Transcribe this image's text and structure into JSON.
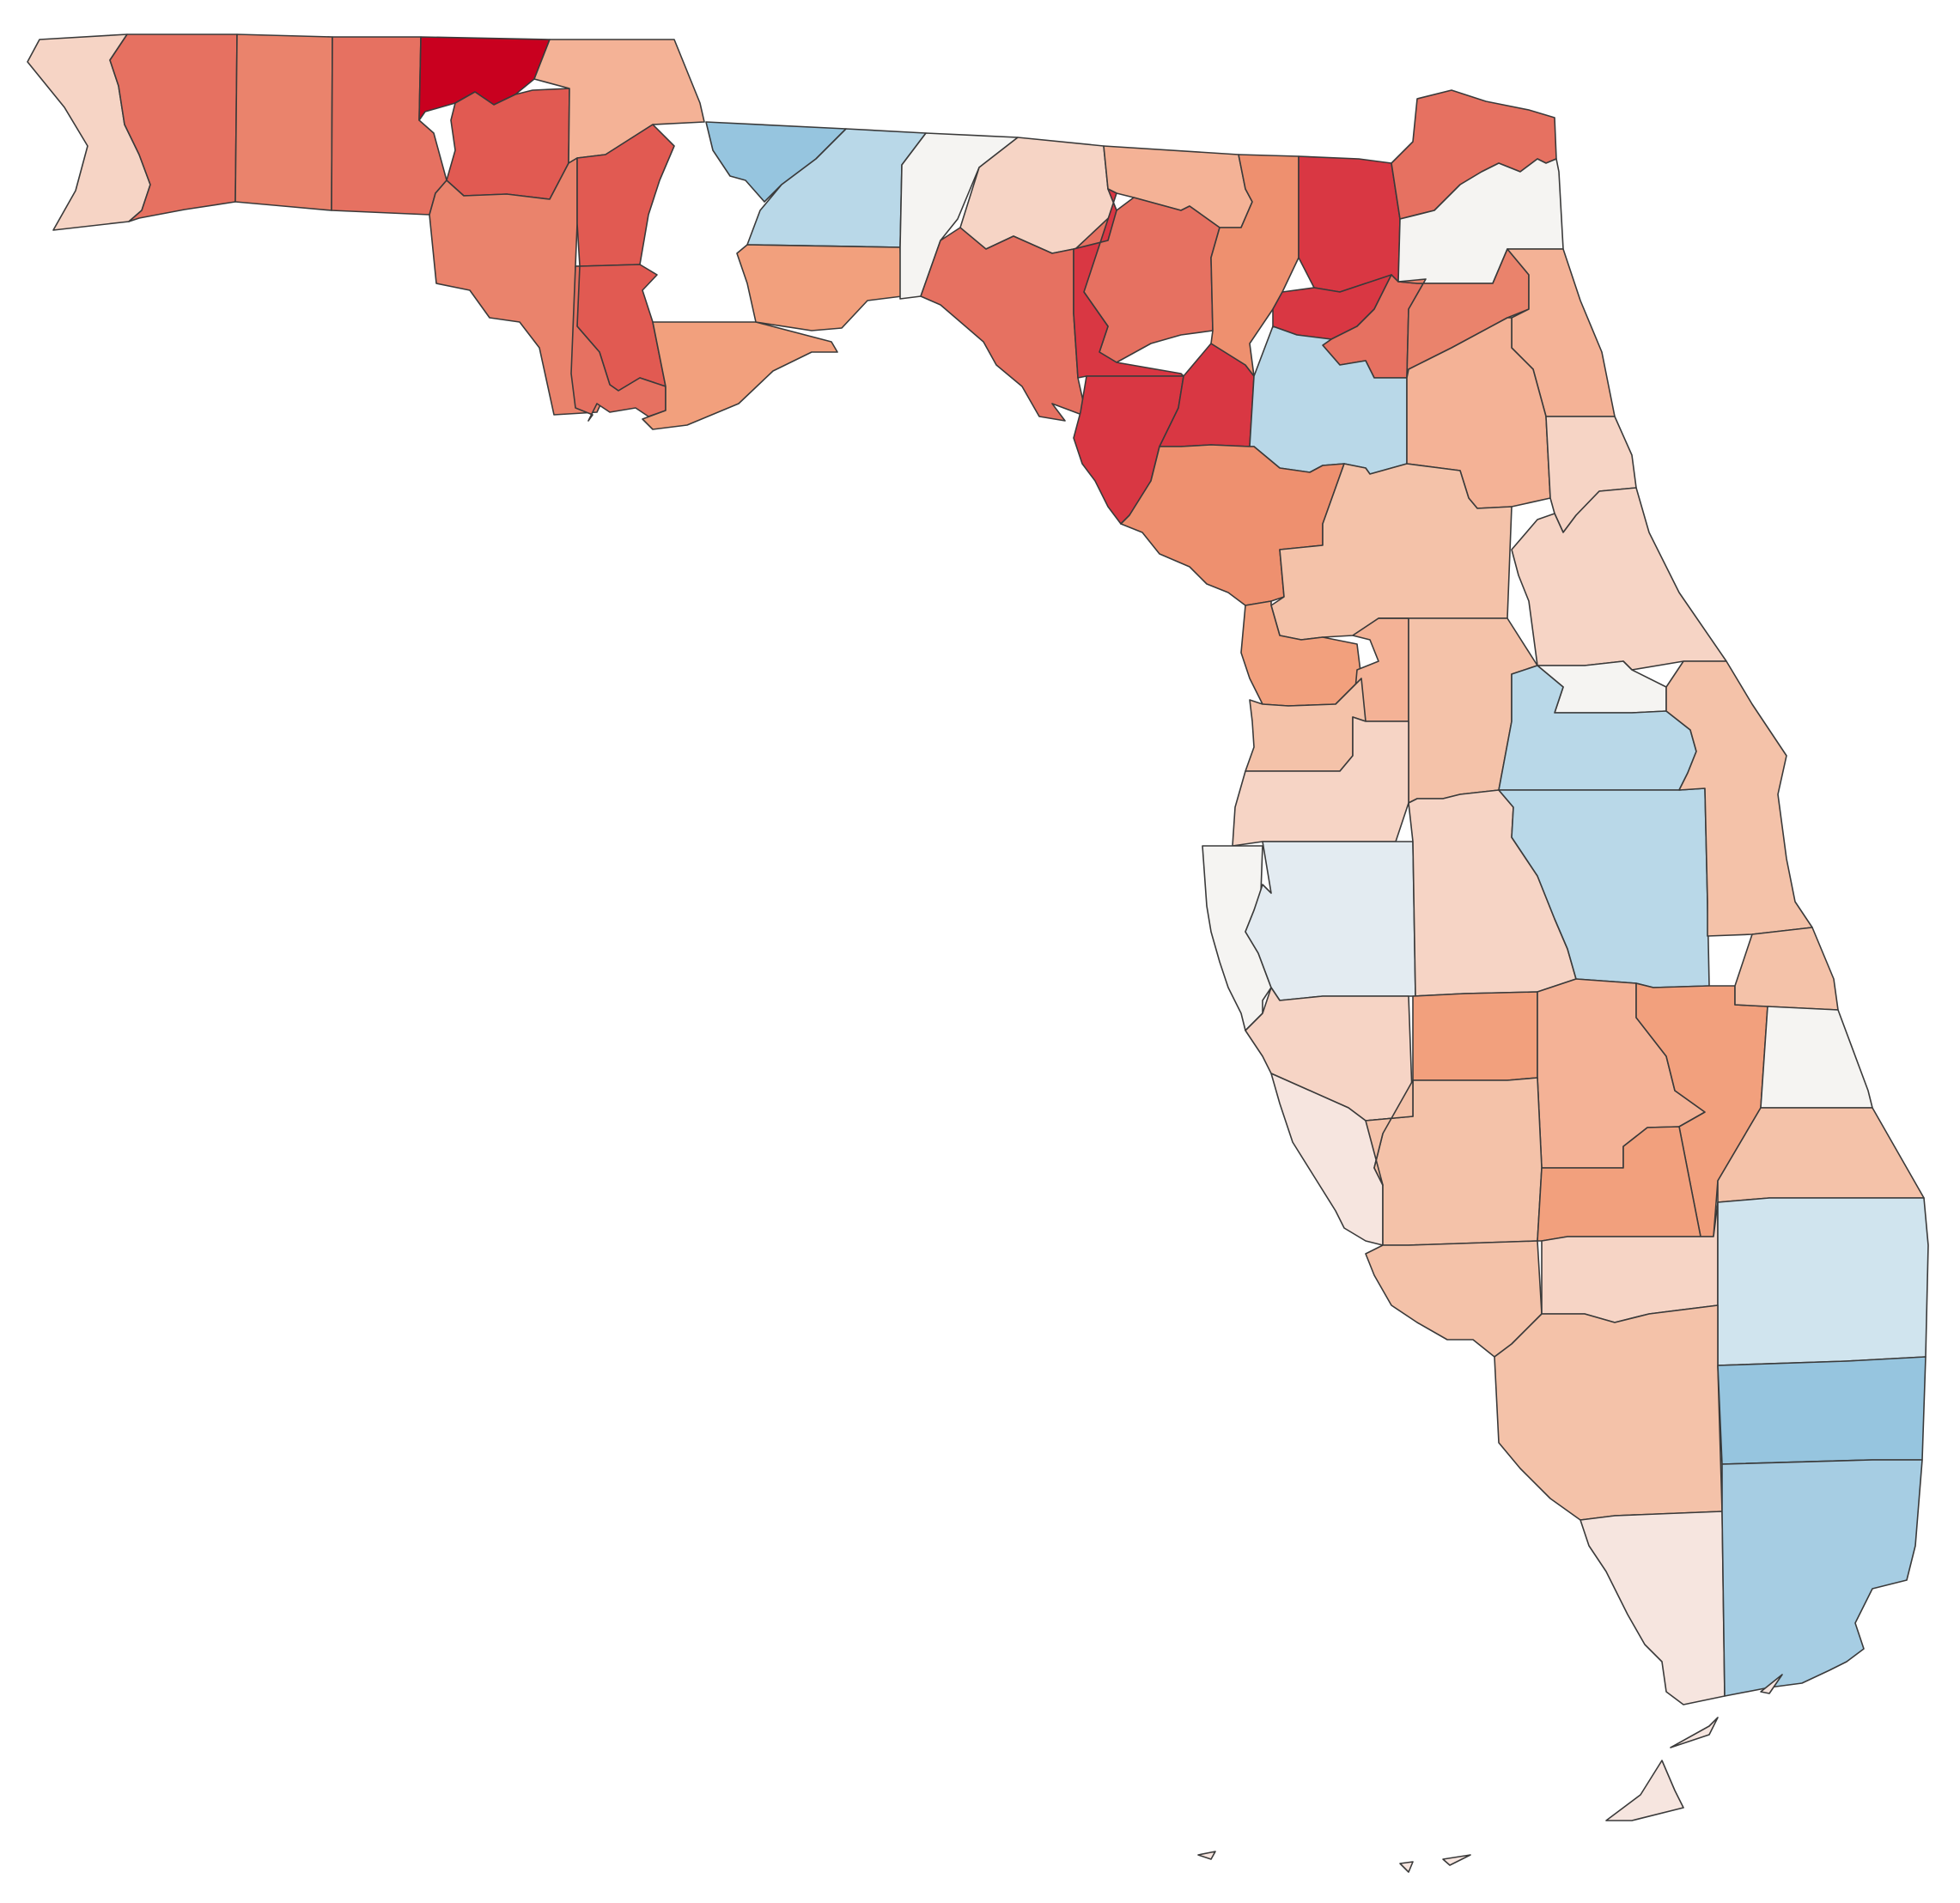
{
  "map": {
    "region": "Florida",
    "unit": "county",
    "legend": null,
    "title": "",
    "color_scale": {
      "type": "diverging",
      "negative_end": "#c9001f",
      "midpoint": "#f5f4f2",
      "positive_end": "#8fc1dc"
    },
    "palette": {
      "r5": "#c9001f",
      "r4": "#d93743",
      "r3": "#e15a52",
      "r2": "#e67161",
      "r1": "#ea836c",
      "o3": "#ee906f",
      "o2": "#f2a07d",
      "o1": "#f4b296",
      "p2": "#f4c2a9",
      "p1": "#f6d4c5",
      "p0": "#f6e5df",
      "n": "#f5f4f2",
      "b1": "#e3ebf1",
      "b2": "#d0e4ee",
      "b3": "#b9d8e8",
      "b4": "#a6cde3",
      "b5": "#96c5df"
    },
    "counties": [
      {
        "id": "escambia",
        "color_key": "p1"
      },
      {
        "id": "santa-rosa",
        "color_key": "r2"
      },
      {
        "id": "okaloosa",
        "color_key": "r1"
      },
      {
        "id": "walton",
        "color_key": "r2"
      },
      {
        "id": "holmes",
        "color_key": "r5"
      },
      {
        "id": "washington",
        "color_key": "r3"
      },
      {
        "id": "jackson",
        "color_key": "o1"
      },
      {
        "id": "bay",
        "color_key": "r1"
      },
      {
        "id": "calhoun",
        "color_key": "r3"
      },
      {
        "id": "liberty",
        "color_key": "r3"
      },
      {
        "id": "gulf",
        "color_key": "r2"
      },
      {
        "id": "franklin",
        "color_key": "o2"
      },
      {
        "id": "gadsden",
        "color_key": "b5"
      },
      {
        "id": "leon",
        "color_key": "b3"
      },
      {
        "id": "wakulla",
        "color_key": "o2"
      },
      {
        "id": "jefferson",
        "color_key": "n"
      },
      {
        "id": "madison",
        "color_key": "p1"
      },
      {
        "id": "hamilton",
        "color_key": "o1"
      },
      {
        "id": "taylor",
        "color_key": "r2"
      },
      {
        "id": "suwannee",
        "color_key": "r2"
      },
      {
        "id": "lafayette",
        "color_key": "r4"
      },
      {
        "id": "dixie",
        "color_key": "r4"
      },
      {
        "id": "gilchrist",
        "color_key": "r4"
      },
      {
        "id": "columbia",
        "color_key": "o3"
      },
      {
        "id": "baker",
        "color_key": "r4"
      },
      {
        "id": "union",
        "color_key": "r4"
      },
      {
        "id": "bradford",
        "color_key": "r2"
      },
      {
        "id": "alachua",
        "color_key": "b3"
      },
      {
        "id": "levy",
        "color_key": "o3"
      },
      {
        "id": "nassau",
        "color_key": "r2"
      },
      {
        "id": "duval",
        "color_key": "n"
      },
      {
        "id": "clay",
        "color_key": "r1"
      },
      {
        "id": "st-johns",
        "color_key": "o1"
      },
      {
        "id": "putnam",
        "color_key": "o1"
      },
      {
        "id": "flagler",
        "color_key": "p1"
      },
      {
        "id": "marion",
        "color_key": "p2"
      },
      {
        "id": "volusia",
        "color_key": "p1"
      },
      {
        "id": "citrus",
        "color_key": "o2"
      },
      {
        "id": "sumter",
        "color_key": "o1"
      },
      {
        "id": "lake",
        "color_key": "p2"
      },
      {
        "id": "hernando",
        "color_key": "p2"
      },
      {
        "id": "seminole",
        "color_key": "n"
      },
      {
        "id": "orange",
        "color_key": "b3"
      },
      {
        "id": "pasco",
        "color_key": "p1"
      },
      {
        "id": "pinellas",
        "color_key": "n"
      },
      {
        "id": "hillsborough",
        "color_key": "b1"
      },
      {
        "id": "polk",
        "color_key": "p1"
      },
      {
        "id": "osceola",
        "color_key": "b3"
      },
      {
        "id": "brevard",
        "color_key": "p2"
      },
      {
        "id": "manatee",
        "color_key": "p1"
      },
      {
        "id": "hardee",
        "color_key": "o2"
      },
      {
        "id": "highlands",
        "color_key": "o1"
      },
      {
        "id": "okeechobee",
        "color_key": "o2"
      },
      {
        "id": "indian-river",
        "color_key": "p2"
      },
      {
        "id": "st-lucie",
        "color_key": "n"
      },
      {
        "id": "sarasota",
        "color_key": "p0"
      },
      {
        "id": "desoto",
        "color_key": "p2"
      },
      {
        "id": "charlotte",
        "color_key": "p2"
      },
      {
        "id": "glades",
        "color_key": "o2"
      },
      {
        "id": "martin",
        "color_key": "p2"
      },
      {
        "id": "lee",
        "color_key": "p2"
      },
      {
        "id": "hendry",
        "color_key": "p1"
      },
      {
        "id": "palm-beach",
        "color_key": "b2"
      },
      {
        "id": "collier",
        "color_key": "p2"
      },
      {
        "id": "broward",
        "color_key": "b5"
      },
      {
        "id": "monroe",
        "color_key": "p0"
      },
      {
        "id": "miami-dade",
        "color_key": "b4"
      }
    ]
  }
}
